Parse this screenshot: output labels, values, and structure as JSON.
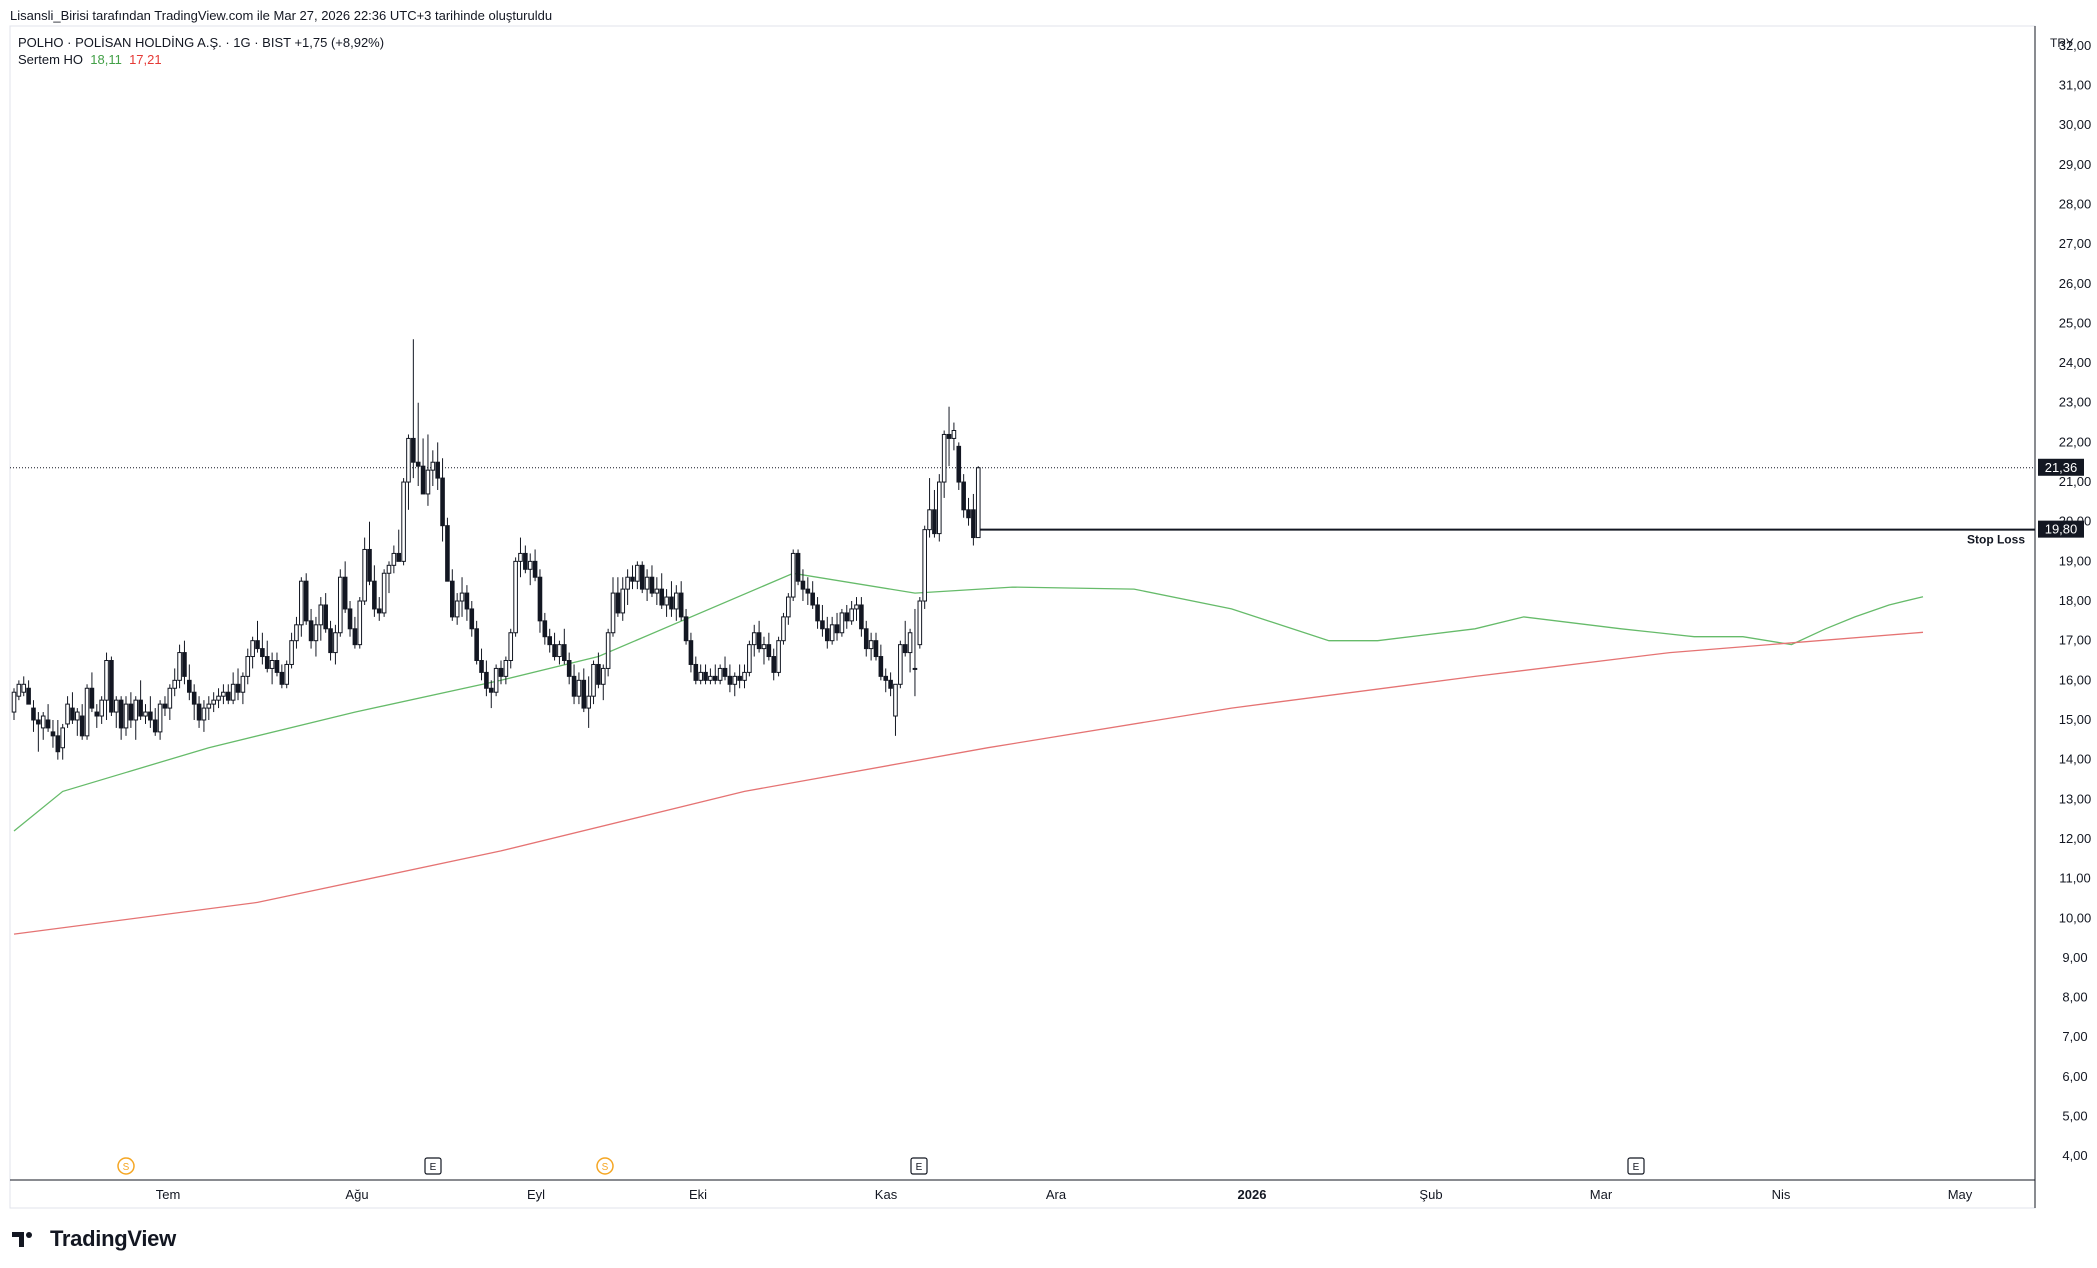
{
  "attribution": "Lisansli_Birisi tarafından TradingView.com ile Mar 27, 2026 22:36 UTC+3 tarihinde oluşturuldu",
  "legend": {
    "symbol_line": "POLHO · POLİSAN HOLDİNG A.Ş. · 1G · BIST  +1,75 (+8,92%)",
    "indicator_name": "Sertem HO",
    "indicator_value_green": "18,11",
    "indicator_value_red": "17,21"
  },
  "currency": "TRY",
  "brand": "TradingView",
  "chart_data": {
    "type": "candlestick",
    "y_ticks": [
      "32,00",
      "31,00",
      "30,00",
      "29,00",
      "28,00",
      "27,00",
      "26,00",
      "25,00",
      "24,00",
      "23,00",
      "22,00",
      "21,00",
      "20,00",
      "19,00",
      "18,00",
      "17,00",
      "16,00",
      "15,00",
      "14,00",
      "13,00",
      "12,00",
      "11,00",
      "10,00",
      "9,00",
      "8,00",
      "7,00",
      "6,00",
      "5,00",
      "4,00"
    ],
    "y_range": [
      3.4,
      32.5
    ],
    "x_labels": [
      {
        "label": "Tem",
        "bold": false
      },
      {
        "label": "Ağu",
        "bold": false
      },
      {
        "label": "Eyl",
        "bold": false
      },
      {
        "label": "Eki",
        "bold": false
      },
      {
        "label": "Kas",
        "bold": false
      },
      {
        "label": "Ara",
        "bold": false
      },
      {
        "label": "2026",
        "bold": true
      },
      {
        "label": "Şub",
        "bold": false
      },
      {
        "label": "Mar",
        "bold": false
      },
      {
        "label": "Nis",
        "bold": false
      },
      {
        "label": "May",
        "bold": false
      }
    ],
    "last_price": {
      "value": 21.36,
      "label": "21,36"
    },
    "stop_loss": {
      "value": 19.8,
      "label": "19,80",
      "text": "Stop Loss"
    },
    "events": [
      {
        "type": "S",
        "date": "Tem",
        "color": "#f5a623"
      },
      {
        "type": "E",
        "date": "Ağu",
        "color": "#131722"
      },
      {
        "type": "S",
        "date": "Eyl",
        "color": "#f5a623"
      },
      {
        "type": "E",
        "date": "Kas",
        "color": "#131722"
      },
      {
        "type": "E",
        "date": "Mar",
        "color": "#131722"
      }
    ],
    "series": [
      {
        "name": "Sertem HO",
        "color": "#66bb6a",
        "points": [
          [
            0,
            12.2
          ],
          [
            10,
            13.2
          ],
          [
            40,
            14.3
          ],
          [
            70,
            15.2
          ],
          [
            100,
            16.0
          ],
          [
            120,
            16.6
          ],
          [
            160,
            18.7
          ],
          [
            185,
            18.2
          ],
          [
            205,
            18.35
          ],
          [
            230,
            18.3
          ],
          [
            250,
            17.8
          ],
          [
            270,
            17.0
          ],
          [
            280,
            17.0
          ],
          [
            300,
            17.3
          ],
          [
            310,
            17.6
          ],
          [
            330,
            17.3
          ],
          [
            345,
            17.1
          ],
          [
            355,
            17.1
          ],
          [
            365,
            16.9
          ],
          [
            372,
            17.3
          ],
          [
            378,
            17.6
          ],
          [
            385,
            17.9
          ],
          [
            392,
            18.11
          ]
        ]
      },
      {
        "name": "",
        "color": "#e57373",
        "points": [
          [
            0,
            9.6
          ],
          [
            50,
            10.4
          ],
          [
            100,
            11.7
          ],
          [
            150,
            13.2
          ],
          [
            200,
            14.3
          ],
          [
            250,
            15.3
          ],
          [
            300,
            16.1
          ],
          [
            340,
            16.7
          ],
          [
            392,
            17.21
          ]
        ]
      }
    ],
    "candles": [
      [
        15.2,
        15.8,
        15.0,
        15.7
      ],
      [
        15.6,
        16.0,
        15.5,
        15.9
      ],
      [
        15.7,
        16.1,
        15.6,
        15.9
      ],
      [
        15.8,
        16.0,
        15.4,
        15.4
      ],
      [
        15.3,
        15.5,
        14.7,
        15.0
      ],
      [
        15.0,
        15.2,
        14.2,
        14.9
      ],
      [
        14.8,
        15.2,
        14.5,
        15.1
      ],
      [
        15.0,
        15.4,
        14.7,
        14.8
      ],
      [
        14.7,
        15.0,
        14.3,
        14.6
      ],
      [
        14.6,
        15.0,
        14.0,
        14.2
      ],
      [
        14.3,
        14.9,
        14.0,
        14.8
      ],
      [
        14.9,
        15.6,
        14.8,
        15.4
      ],
      [
        15.3,
        15.7,
        14.9,
        15.0
      ],
      [
        15.0,
        15.3,
        14.6,
        15.2
      ],
      [
        15.1,
        15.4,
        14.5,
        14.6
      ],
      [
        14.6,
        15.9,
        14.5,
        15.8
      ],
      [
        15.8,
        16.2,
        15.2,
        15.3
      ],
      [
        15.2,
        15.4,
        14.8,
        15.1
      ],
      [
        15.1,
        15.6,
        14.9,
        15.5
      ],
      [
        15.5,
        16.7,
        15.0,
        16.5
      ],
      [
        16.5,
        16.6,
        15.1,
        15.2
      ],
      [
        15.2,
        15.6,
        14.8,
        15.5
      ],
      [
        15.5,
        15.6,
        14.5,
        14.8
      ],
      [
        14.8,
        15.6,
        14.6,
        15.4
      ],
      [
        15.4,
        15.7,
        14.8,
        15.0
      ],
      [
        15.0,
        15.6,
        14.5,
        15.5
      ],
      [
        15.5,
        16.0,
        15.0,
        15.1
      ],
      [
        15.1,
        15.4,
        14.9,
        15.2
      ],
      [
        15.2,
        15.6,
        14.8,
        15.0
      ],
      [
        15.0,
        15.3,
        14.6,
        14.7
      ],
      [
        14.7,
        15.5,
        14.5,
        15.4
      ],
      [
        15.4,
        15.6,
        15.1,
        15.3
      ],
      [
        15.3,
        15.9,
        15.0,
        15.8
      ],
      [
        15.8,
        16.3,
        15.6,
        16.0
      ],
      [
        16.0,
        16.9,
        15.8,
        16.7
      ],
      [
        16.7,
        17.0,
        15.9,
        16.1
      ],
      [
        16.0,
        16.4,
        15.5,
        15.7
      ],
      [
        15.7,
        15.9,
        15.0,
        15.4
      ],
      [
        15.4,
        15.6,
        14.8,
        15.0
      ],
      [
        15.0,
        15.5,
        14.7,
        15.3
      ],
      [
        15.3,
        15.6,
        15.0,
        15.4
      ],
      [
        15.4,
        15.7,
        15.2,
        15.5
      ],
      [
        15.5,
        15.8,
        15.3,
        15.6
      ],
      [
        15.6,
        15.9,
        15.4,
        15.7
      ],
      [
        15.7,
        15.9,
        15.4,
        15.5
      ],
      [
        15.5,
        16.2,
        15.4,
        15.9
      ],
      [
        15.9,
        16.3,
        15.5,
        15.7
      ],
      [
        15.7,
        16.2,
        15.4,
        16.1
      ],
      [
        16.1,
        16.8,
        15.9,
        16.6
      ],
      [
        16.6,
        17.1,
        16.3,
        17.0
      ],
      [
        17.0,
        17.5,
        16.7,
        16.8
      ],
      [
        16.8,
        17.2,
        16.4,
        16.6
      ],
      [
        16.6,
        17.0,
        16.2,
        16.3
      ],
      [
        16.3,
        16.7,
        15.9,
        16.5
      ],
      [
        16.5,
        16.7,
        16.1,
        16.2
      ],
      [
        16.2,
        16.4,
        15.8,
        15.9
      ],
      [
        15.9,
        16.5,
        15.8,
        16.4
      ],
      [
        16.4,
        17.2,
        16.3,
        17.0
      ],
      [
        17.0,
        17.6,
        16.8,
        17.4
      ],
      [
        17.4,
        18.6,
        17.1,
        18.5
      ],
      [
        18.5,
        18.7,
        17.4,
        17.5
      ],
      [
        17.5,
        17.8,
        16.8,
        17.0
      ],
      [
        17.0,
        17.6,
        16.6,
        17.4
      ],
      [
        17.4,
        18.1,
        17.0,
        17.9
      ],
      [
        17.9,
        18.2,
        17.2,
        17.3
      ],
      [
        17.3,
        17.5,
        16.5,
        16.7
      ],
      [
        16.7,
        17.4,
        16.4,
        17.2
      ],
      [
        17.2,
        18.8,
        17.1,
        18.6
      ],
      [
        18.6,
        19.0,
        17.7,
        17.8
      ],
      [
        17.8,
        18.0,
        17.1,
        17.3
      ],
      [
        17.3,
        17.6,
        16.8,
        16.9
      ],
      [
        16.9,
        18.1,
        16.8,
        18.0
      ],
      [
        18.0,
        19.6,
        17.9,
        19.3
      ],
      [
        19.3,
        20.0,
        18.4,
        18.5
      ],
      [
        18.5,
        18.9,
        17.6,
        17.8
      ],
      [
        17.8,
        18.1,
        17.5,
        17.7
      ],
      [
        17.7,
        18.8,
        17.6,
        18.7
      ],
      [
        18.7,
        19.0,
        18.2,
        18.9
      ],
      [
        18.9,
        19.4,
        18.7,
        19.2
      ],
      [
        19.2,
        19.8,
        19.0,
        19.0
      ],
      [
        19.0,
        21.1,
        18.9,
        21.0
      ],
      [
        21.0,
        22.2,
        20.3,
        22.1
      ],
      [
        22.1,
        24.6,
        21.1,
        21.5
      ],
      [
        21.5,
        23.0,
        20.9,
        21.4
      ],
      [
        21.4,
        22.1,
        20.7,
        20.7
      ],
      [
        20.7,
        22.2,
        20.4,
        21.3
      ],
      [
        21.3,
        21.8,
        20.9,
        21.5
      ],
      [
        21.5,
        22.0,
        20.8,
        21.1
      ],
      [
        21.1,
        21.6,
        19.5,
        19.9
      ],
      [
        19.9,
        20.1,
        18.7,
        18.5
      ],
      [
        18.5,
        18.8,
        17.5,
        17.6
      ],
      [
        17.6,
        18.2,
        17.4,
        18.0
      ],
      [
        18.0,
        18.6,
        17.6,
        18.2
      ],
      [
        18.2,
        18.4,
        17.5,
        17.8
      ],
      [
        17.8,
        18.0,
        17.1,
        17.3
      ],
      [
        17.3,
        17.5,
        16.4,
        16.5
      ],
      [
        16.5,
        16.8,
        16.0,
        16.2
      ],
      [
        16.2,
        16.5,
        15.6,
        15.8
      ],
      [
        15.8,
        16.0,
        15.3,
        15.7
      ],
      [
        15.7,
        16.4,
        15.6,
        16.3
      ],
      [
        16.3,
        16.5,
        15.9,
        16.1
      ],
      [
        16.1,
        16.6,
        15.9,
        16.5
      ],
      [
        16.5,
        17.3,
        16.3,
        17.2
      ],
      [
        17.2,
        19.1,
        17.1,
        19.0
      ],
      [
        19.0,
        19.6,
        18.6,
        19.2
      ],
      [
        19.2,
        19.4,
        18.7,
        18.8
      ],
      [
        18.8,
        19.2,
        18.4,
        19.0
      ],
      [
        19.0,
        19.3,
        18.5,
        18.6
      ],
      [
        18.6,
        18.8,
        17.2,
        17.5
      ],
      [
        17.5,
        17.7,
        16.9,
        17.1
      ],
      [
        17.1,
        17.3,
        16.7,
        16.9
      ],
      [
        16.9,
        17.2,
        16.5,
        16.6
      ],
      [
        16.6,
        17.0,
        16.4,
        16.9
      ],
      [
        16.9,
        17.3,
        16.4,
        16.5
      ],
      [
        16.5,
        16.7,
        15.9,
        16.1
      ],
      [
        16.1,
        16.4,
        15.4,
        15.6
      ],
      [
        15.6,
        16.2,
        15.4,
        16.0
      ],
      [
        16.0,
        16.3,
        15.2,
        15.3
      ],
      [
        15.3,
        16.1,
        14.8,
        15.6
      ],
      [
        15.6,
        16.5,
        15.4,
        16.4
      ],
      [
        16.4,
        16.7,
        15.8,
        15.9
      ],
      [
        15.9,
        16.4,
        15.5,
        16.3
      ],
      [
        16.3,
        17.3,
        16.1,
        17.2
      ],
      [
        17.2,
        18.6,
        17.1,
        18.2
      ],
      [
        18.2,
        18.6,
        17.6,
        17.7
      ],
      [
        17.7,
        18.6,
        17.5,
        18.3
      ],
      [
        18.3,
        18.8,
        17.9,
        18.6
      ],
      [
        18.6,
        18.9,
        18.3,
        18.5
      ],
      [
        18.5,
        19.0,
        18.3,
        18.9
      ],
      [
        18.9,
        19.0,
        18.2,
        18.3
      ],
      [
        18.3,
        18.8,
        18.0,
        18.6
      ],
      [
        18.6,
        18.9,
        18.1,
        18.2
      ],
      [
        18.2,
        18.6,
        17.9,
        18.3
      ],
      [
        18.3,
        18.7,
        17.8,
        17.9
      ],
      [
        17.9,
        18.3,
        17.6,
        18.1
      ],
      [
        18.1,
        18.5,
        17.6,
        17.8
      ],
      [
        17.8,
        18.4,
        17.5,
        18.2
      ],
      [
        18.2,
        18.5,
        17.5,
        17.6
      ],
      [
        17.6,
        17.8,
        16.9,
        17.0
      ],
      [
        17.0,
        17.2,
        16.2,
        16.4
      ],
      [
        16.4,
        16.6,
        15.9,
        16.0
      ],
      [
        16.0,
        16.4,
        15.9,
        16.2
      ],
      [
        16.2,
        16.4,
        15.9,
        16.0
      ],
      [
        16.0,
        16.3,
        15.9,
        16.1
      ],
      [
        16.1,
        16.4,
        15.9,
        16.0
      ],
      [
        16.0,
        16.4,
        15.9,
        16.3
      ],
      [
        16.3,
        16.6,
        16.0,
        16.1
      ],
      [
        16.1,
        16.4,
        15.7,
        15.9
      ],
      [
        15.9,
        16.2,
        15.6,
        16.1
      ],
      [
        16.1,
        16.4,
        15.8,
        16.0
      ],
      [
        16.0,
        16.4,
        15.8,
        16.2
      ],
      [
        16.2,
        17.0,
        16.1,
        16.9
      ],
      [
        16.9,
        17.4,
        16.6,
        17.2
      ],
      [
        17.2,
        17.5,
        16.7,
        16.8
      ],
      [
        16.8,
        17.1,
        16.4,
        16.9
      ],
      [
        16.9,
        17.2,
        16.5,
        16.6
      ],
      [
        16.6,
        16.8,
        16.0,
        16.2
      ],
      [
        16.2,
        17.1,
        16.1,
        17.0
      ],
      [
        17.0,
        17.7,
        16.9,
        17.6
      ],
      [
        17.6,
        18.2,
        17.4,
        18.1
      ],
      [
        18.1,
        19.3,
        18.0,
        19.2
      ],
      [
        19.2,
        19.3,
        18.4,
        18.5
      ],
      [
        18.5,
        18.8,
        18.0,
        18.3
      ],
      [
        18.3,
        18.6,
        17.9,
        18.2
      ],
      [
        18.2,
        18.5,
        17.8,
        17.9
      ],
      [
        17.9,
        18.1,
        17.3,
        17.5
      ],
      [
        17.5,
        17.9,
        17.1,
        17.3
      ],
      [
        17.3,
        17.6,
        16.8,
        17.0
      ],
      [
        17.0,
        17.6,
        16.9,
        17.4
      ],
      [
        17.4,
        17.7,
        17.0,
        17.2
      ],
      [
        17.2,
        17.8,
        17.1,
        17.7
      ],
      [
        17.7,
        17.9,
        17.3,
        17.5
      ],
      [
        17.5,
        18.0,
        17.4,
        17.8
      ],
      [
        17.8,
        18.1,
        17.5,
        17.9
      ],
      [
        17.9,
        18.1,
        17.1,
        17.3
      ],
      [
        17.3,
        17.5,
        16.6,
        16.8
      ],
      [
        16.8,
        17.2,
        16.5,
        17.0
      ],
      [
        17.0,
        17.2,
        16.5,
        16.6
      ],
      [
        16.6,
        16.9,
        16.0,
        16.1
      ],
      [
        16.1,
        16.3,
        15.7,
        16.0
      ],
      [
        16.0,
        16.2,
        15.6,
        15.8
      ],
      [
        15.1,
        15.9,
        14.6,
        15.9
      ],
      [
        15.9,
        17.0,
        15.8,
        16.9
      ],
      [
        16.9,
        17.5,
        16.6,
        16.7
      ],
      [
        16.7,
        17.3,
        16.2,
        17.2
      ],
      [
        16.3,
        17.8,
        15.6,
        16.3
      ],
      [
        16.9,
        18.1,
        16.8,
        18.0
      ],
      [
        18.0,
        19.9,
        17.8,
        19.8
      ],
      [
        19.8,
        21.1,
        19.6,
        20.3
      ],
      [
        20.3,
        20.8,
        19.6,
        19.7
      ],
      [
        19.7,
        21.2,
        19.5,
        21.0
      ],
      [
        21.0,
        22.3,
        20.6,
        22.2
      ],
      [
        22.2,
        22.9,
        21.4,
        22.1
      ],
      [
        22.1,
        22.5,
        21.8,
        22.3
      ],
      [
        21.9,
        22.0,
        20.8,
        21.0
      ],
      [
        21.0,
        21.2,
        20.1,
        20.3
      ],
      [
        20.3,
        20.6,
        19.9,
        20.1
      ],
      [
        20.3,
        20.7,
        19.4,
        19.6
      ],
      [
        19.6,
        21.4,
        19.6,
        21.36
      ]
    ]
  }
}
